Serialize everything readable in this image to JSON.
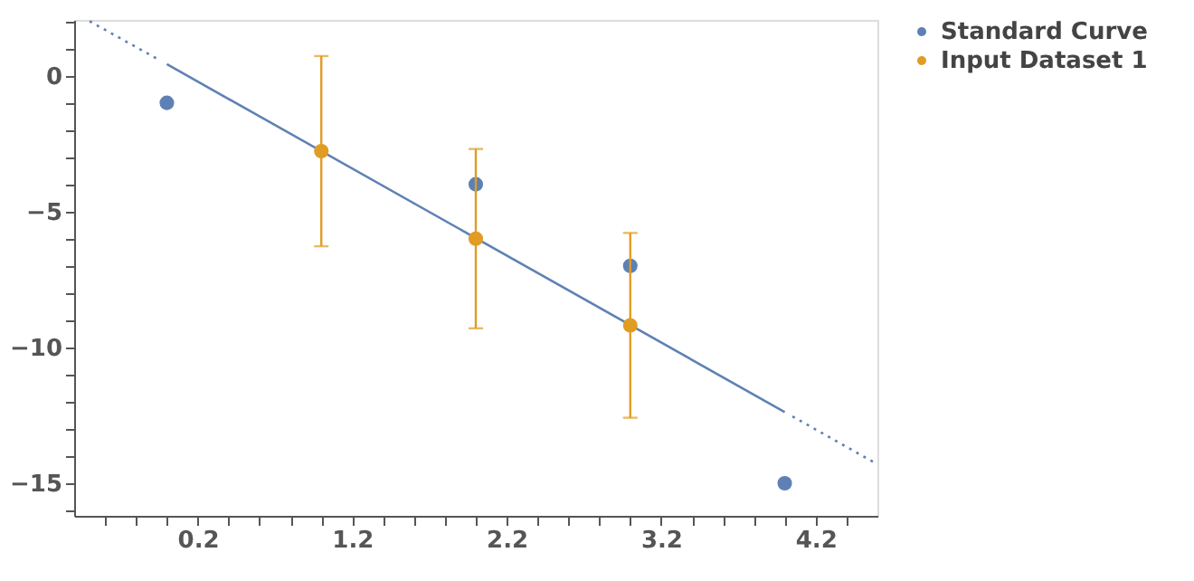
{
  "chart_data": {
    "type": "scatter",
    "legend": "right",
    "marker": "circle",
    "grid": false,
    "xlim": [
      -0.6,
      4.6
    ],
    "ylim": [
      -16.2,
      2.05
    ],
    "xticks": [
      {
        "value": -0.4,
        "label": null
      },
      {
        "value": -0.2,
        "label": null
      },
      {
        "value": 0,
        "label": null
      },
      0.2,
      {
        "value": 0.4,
        "label": null
      },
      {
        "value": 0.6,
        "label": null
      },
      {
        "value": 0.8,
        "label": null
      },
      {
        "value": 1.0,
        "label": null
      },
      1.2,
      {
        "value": 1.4,
        "label": null
      },
      {
        "value": 1.6,
        "label": null
      },
      {
        "value": 1.8,
        "label": null
      },
      {
        "value": 2.0,
        "label": null
      },
      2.2,
      {
        "value": 2.4,
        "label": null
      },
      {
        "value": 2.6,
        "label": null
      },
      {
        "value": 2.8,
        "label": null
      },
      {
        "value": 3.0,
        "label": null
      },
      3.2,
      {
        "value": 3.4,
        "label": null
      },
      {
        "value": 3.6,
        "label": null
      },
      {
        "value": 3.8,
        "label": null
      },
      {
        "value": 4.0,
        "label": null
      },
      4.2,
      {
        "value": 4.4,
        "label": null
      }
    ],
    "yticks": [
      {
        "value": 2,
        "label": null
      },
      {
        "value": 1,
        "label": null
      },
      0,
      {
        "value": -1,
        "label": null
      },
      {
        "value": -2,
        "label": null
      },
      {
        "value": -3,
        "label": null
      },
      {
        "value": -4,
        "label": null
      },
      {
        "value": -5,
        "label": "−5"
      },
      {
        "value": -6,
        "label": null
      },
      {
        "value": -7,
        "label": null
      },
      {
        "value": -8,
        "label": null
      },
      {
        "value": -9,
        "label": null
      },
      {
        "value": -10,
        "label": "−10"
      },
      {
        "value": -11,
        "label": null
      },
      {
        "value": -12,
        "label": null
      },
      {
        "value": -13,
        "label": null
      },
      {
        "value": -14,
        "label": null
      },
      {
        "value": -15,
        "label": "−15"
      },
      {
        "value": -16,
        "label": null
      }
    ],
    "series": [
      {
        "type": "line",
        "marker": "none",
        "color": "#5e81b5",
        "line_style": "dotted",
        "x": [
          -0.5,
          -0.05
        ],
        "values": [
          2.0,
          0.58
        ]
      },
      {
        "type": "line",
        "marker": "none",
        "color": "#5e81b5",
        "line_style": "solid",
        "x": [
          0,
          4
        ],
        "values": [
          0.42,
          -12.38
        ]
      },
      {
        "type": "line",
        "marker": "none",
        "color": "#5e81b5",
        "line_style": "dotted",
        "x": [
          4.05,
          4.59
        ],
        "values": [
          -12.54,
          -14.27
        ]
      },
      {
        "name": "Standard Curve",
        "color": "#5e81b5",
        "x": [
          0,
          2,
          3,
          4
        ],
        "values": [
          -1,
          -4,
          -7,
          -15
        ]
      },
      {
        "name": "Input Dataset 1",
        "color": "#e19c24",
        "x": [
          1,
          2,
          3
        ],
        "values": [
          -2.78,
          -6.0,
          -9.19
        ],
        "errors": [
          3.5,
          3.3,
          3.4
        ]
      }
    ]
  }
}
